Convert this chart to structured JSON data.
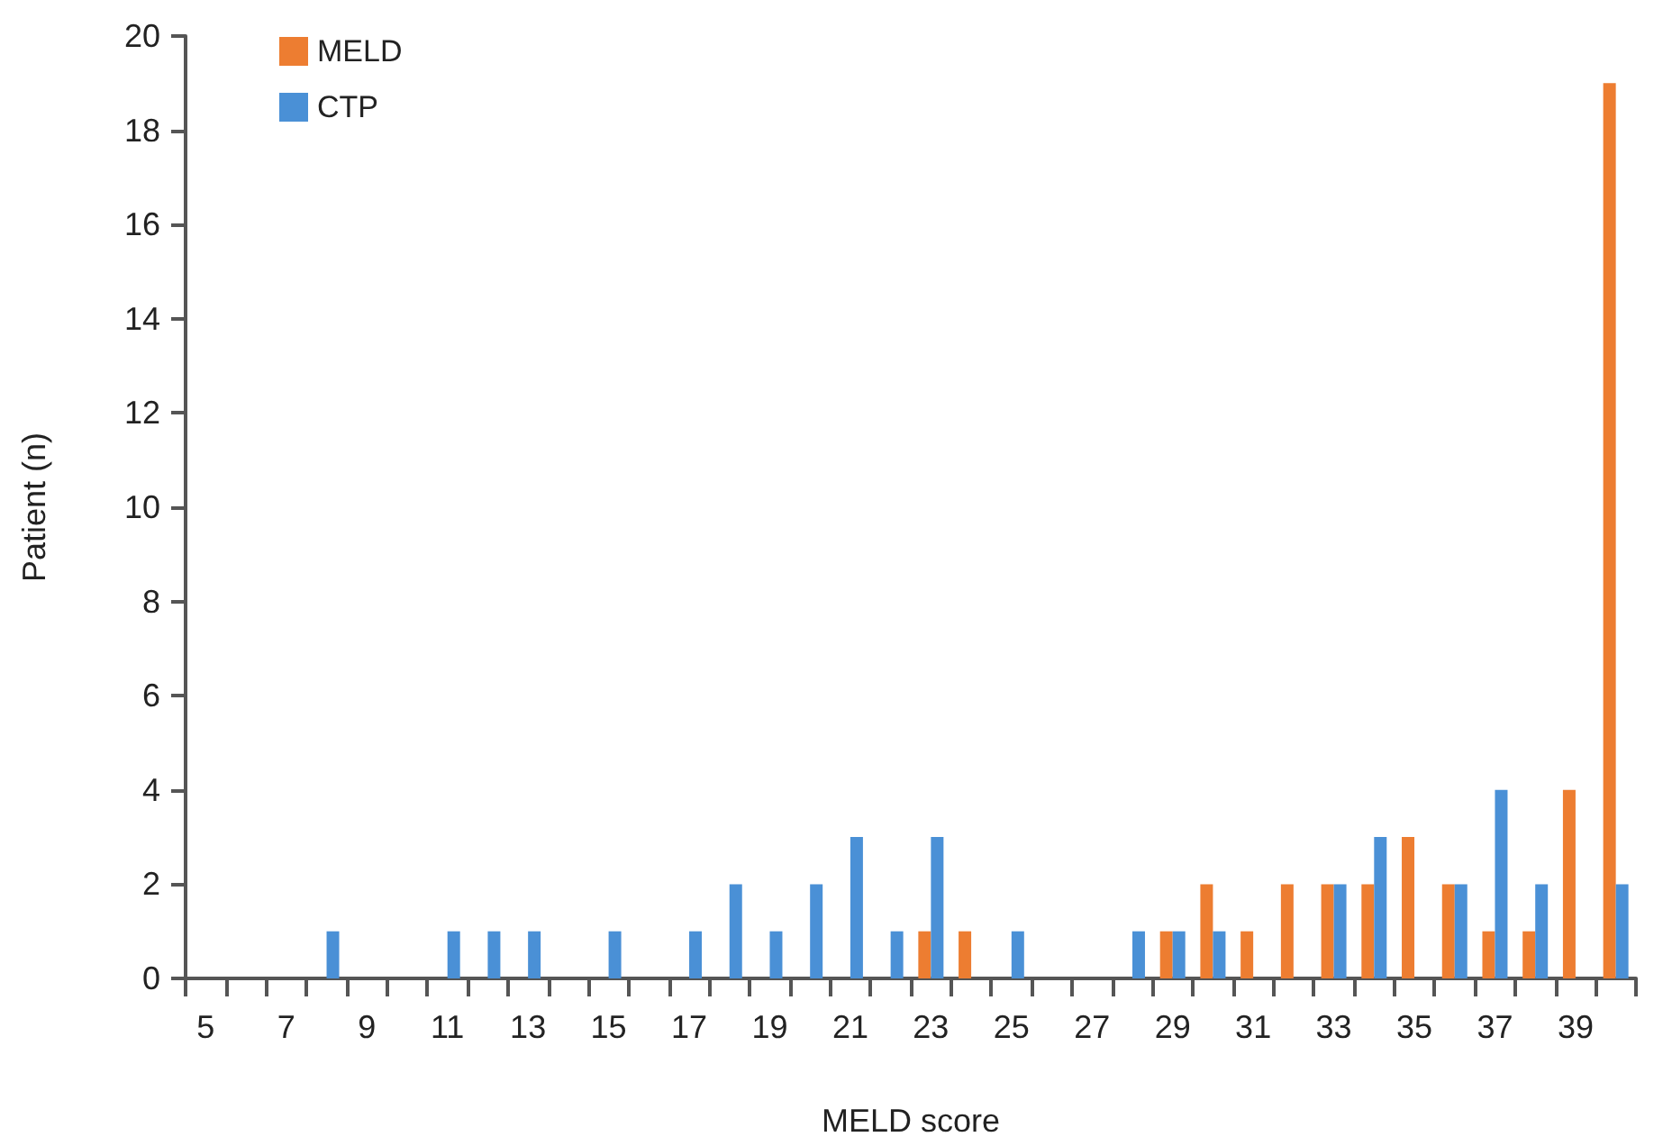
{
  "chart_data": {
    "type": "bar",
    "xlabel": "MELD score",
    "ylabel": "Patient (n)",
    "categories": [
      "5",
      null,
      "7",
      null,
      "9",
      null,
      "11",
      null,
      "13",
      null,
      "15",
      null,
      "17",
      null,
      "19",
      null,
      "21",
      null,
      "23",
      null,
      "25",
      null,
      "27",
      null,
      "29",
      null,
      "31",
      null,
      "33",
      null,
      "35",
      null,
      "37",
      null,
      "39",
      null
    ],
    "series": [
      {
        "name": "MELD",
        "color": "#ed7d31",
        "values": [
          0,
          0,
          0,
          0,
          0,
          0,
          0,
          0,
          0,
          0,
          0,
          0,
          0,
          0,
          0,
          0,
          0,
          0,
          1,
          1,
          0,
          0,
          0,
          0,
          1,
          2,
          1,
          2,
          2,
          2,
          3,
          2,
          1,
          1,
          4,
          19
        ]
      },
      {
        "name": "CTP",
        "color": "#4a90d6",
        "values": [
          0,
          0,
          0,
          1,
          0,
          0,
          1,
          1,
          1,
          0,
          1,
          0,
          1,
          2,
          1,
          2,
          3,
          1,
          3,
          0,
          1,
          0,
          0,
          1,
          1,
          1,
          0,
          0,
          2,
          3,
          0,
          2,
          4,
          2,
          0,
          2
        ]
      }
    ],
    "ylim": [
      0,
      20
    ],
    "yticks": [
      0,
      2,
      4,
      6,
      8,
      10,
      12,
      14,
      16,
      18,
      20
    ],
    "grid": false,
    "legend": "top left"
  }
}
